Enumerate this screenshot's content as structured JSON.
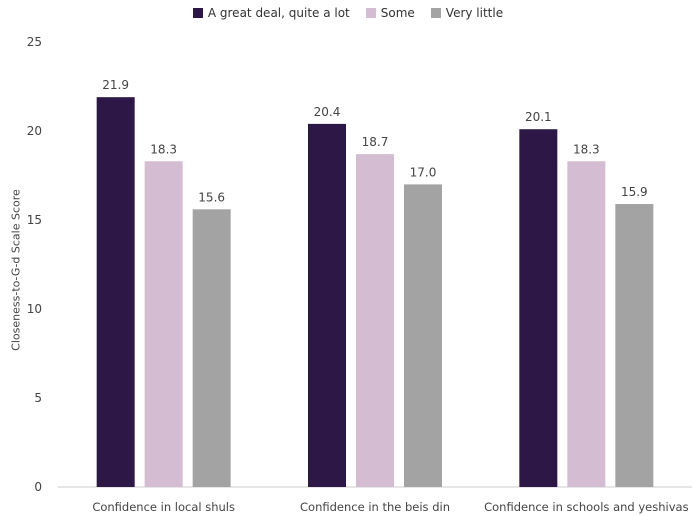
{
  "chart_data": {
    "type": "bar",
    "categories": [
      "Confidence in local shuls",
      "Confidence in the beis din",
      "Confidence in schools and yeshivas"
    ],
    "series": [
      {
        "name": "A great deal, quite a lot",
        "color": "#2d1747",
        "values": [
          21.9,
          20.4,
          20.1
        ]
      },
      {
        "name": "Some",
        "color": "#d4bdd3",
        "values": [
          18.3,
          18.7,
          18.3
        ]
      },
      {
        "name": "Very little",
        "color": "#a3a3a3",
        "values": [
          15.6,
          17.0,
          15.9
        ]
      }
    ],
    "ylabel": "Closeness-to-G-d Scale Score",
    "ylim": [
      0,
      25
    ],
    "yticks": [
      0,
      5,
      10,
      15,
      20,
      25
    ],
    "grid": false,
    "legend": "top-center"
  }
}
